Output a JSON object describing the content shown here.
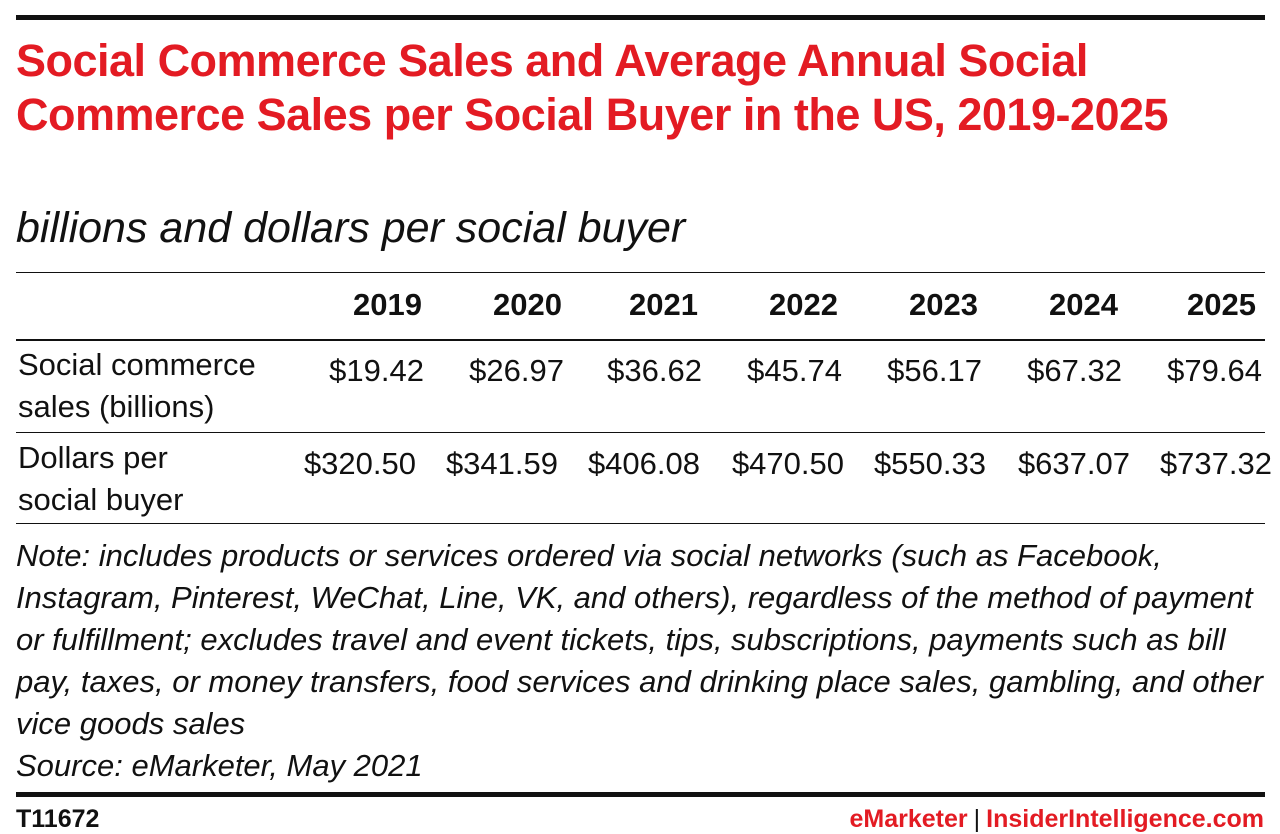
{
  "title": "Social Commerce Sales and Average Annual Social Commerce Sales per Social Buyer in the US, 2019-2025",
  "subtitle": "billions and dollars per social buyer",
  "chart_data": {
    "type": "table",
    "columns": [
      "2019",
      "2020",
      "2021",
      "2022",
      "2023",
      "2024",
      "2025"
    ],
    "rows": [
      {
        "label_line1": "Social commerce",
        "label_line2": "sales (billions)",
        "values": [
          "$19.42",
          "$26.97",
          "$36.62",
          "$45.74",
          "$56.17",
          "$67.32",
          "$79.64"
        ]
      },
      {
        "label_line1": "Dollars per",
        "label_line2": "social buyer",
        "values": [
          "$320.50",
          "$341.59",
          "$406.08",
          "$470.50",
          "$550.33",
          "$637.07",
          "$737.32"
        ]
      }
    ]
  },
  "note": "Note: includes products or services ordered via social networks (such as Facebook, Instagram, Pinterest, WeChat, Line, VK, and others), regardless of the method of payment or fulfillment; excludes travel and event tickets, tips, subscriptions, payments such as bill pay, taxes, or money transfers, food services and drinking place sales, gambling, and other vice goods sales",
  "source": "Source: eMarketer, May 2021",
  "footer": {
    "table_id": "T11672",
    "brand_primary": "eMarketer",
    "separator": "|",
    "brand_secondary": "InsiderIntelligence.com"
  },
  "colors": {
    "accent": "#e31b23",
    "text": "#111111"
  }
}
